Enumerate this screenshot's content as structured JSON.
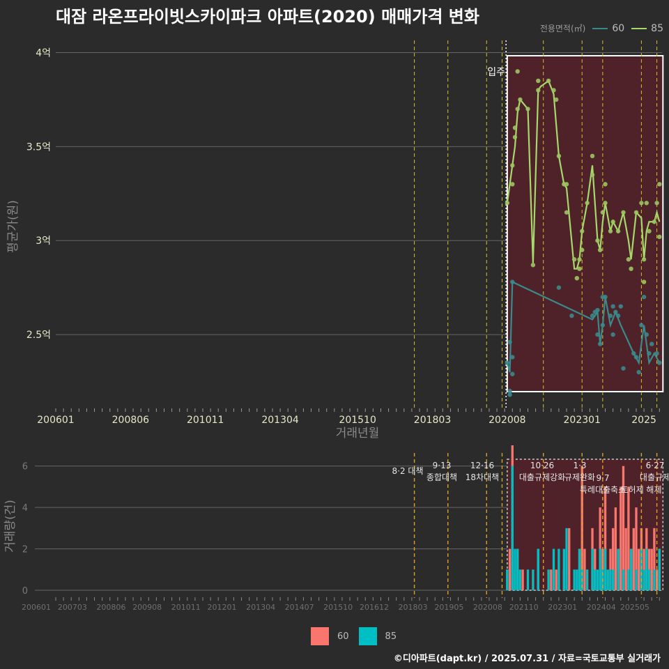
{
  "title": "대잠 라온프라이빗스카이파크 아파트(2020) 매매가격 변화",
  "footer": "©디아파트(dapt.kr) / 2025.07.31 / 자료=국토교통부 실거래가",
  "legend_top": {
    "title": "전용면적(㎡)",
    "items": [
      {
        "label": "60",
        "color": "#3a8a8c"
      },
      {
        "label": "85",
        "color": "#a7d86b"
      }
    ]
  },
  "legend_bottom": {
    "items": [
      {
        "label": "60",
        "color": "#f8766d"
      },
      {
        "label": "85",
        "color": "#00bfc4"
      }
    ]
  },
  "chart_data": [
    {
      "type": "line",
      "ylabel": "평균가(원)",
      "xlabel": "거래년월",
      "ylim": [
        2.1,
        4.05
      ],
      "y_unit": "억",
      "ytick_labels": [
        "2.5억",
        "3억",
        "3.5억",
        "4억"
      ],
      "ytick_values": [
        2.5,
        3.0,
        3.5,
        4.0
      ],
      "xtick_labels": [
        "200601",
        "200806",
        "201011",
        "201304",
        "201510",
        "201803",
        "202008",
        "202301",
        "2025"
      ],
      "xrange": [
        "2006-01",
        "2025-08"
      ],
      "grid": true,
      "highlight_period": [
        "2020-08",
        "2025-07"
      ],
      "policy_lines": [
        "2017-08",
        "2018-09",
        "2019-12",
        "2020-06",
        "2021-10",
        "2023-01",
        "2023-09",
        "2024-12",
        "2025-06"
      ],
      "annotation": {
        "text": "입주",
        "date": "2020-07"
      },
      "series": [
        {
          "name": "85",
          "color": "#a7d86b",
          "points": [
            [
              "2020-08",
              3.2
            ],
            [
              "2020-10",
              3.4
            ],
            [
              "2020-11",
              3.5
            ],
            [
              "2020-12",
              3.68
            ],
            [
              "2021-01",
              3.75
            ],
            [
              "2021-04",
              3.7
            ],
            [
              "2021-06",
              2.88
            ],
            [
              "2021-08",
              3.8
            ],
            [
              "2021-09",
              3.82
            ],
            [
              "2021-12",
              3.85
            ],
            [
              "2022-02",
              3.78
            ],
            [
              "2022-04",
              3.45
            ],
            [
              "2022-06",
              3.3
            ],
            [
              "2022-07",
              3.28
            ],
            [
              "2022-10",
              2.85
            ],
            [
              "2022-11",
              2.85
            ],
            [
              "2022-12",
              2.9
            ],
            [
              "2023-01",
              3.05
            ],
            [
              "2023-03",
              3.2
            ],
            [
              "2023-05",
              3.4
            ],
            [
              "2023-07",
              3.0
            ],
            [
              "2023-08",
              2.95
            ],
            [
              "2023-09",
              3.1
            ],
            [
              "2023-10",
              3.2
            ],
            [
              "2023-12",
              3.05
            ],
            [
              "2024-01",
              3.1
            ],
            [
              "2024-03",
              3.05
            ],
            [
              "2024-05",
              3.15
            ],
            [
              "2024-07",
              3.0
            ],
            [
              "2024-08",
              2.9
            ],
            [
              "2024-10",
              3.15
            ],
            [
              "2024-12",
              3.12
            ],
            [
              "2025-01",
              2.9
            ],
            [
              "2025-02",
              3.05
            ],
            [
              "2025-03",
              3.1
            ],
            [
              "2025-05",
              3.1
            ],
            [
              "2025-06",
              3.15
            ],
            [
              "2025-07",
              3.1
            ]
          ]
        },
        {
          "name": "60",
          "color": "#3a8a8c",
          "points": [
            [
              "2020-08",
              2.35
            ],
            [
              "2020-09",
              2.3
            ],
            [
              "2020-10",
              2.78
            ],
            [
              "2023-05",
              2.58
            ],
            [
              "2023-06",
              2.6
            ],
            [
              "2023-07",
              2.62
            ],
            [
              "2023-08",
              2.45
            ],
            [
              "2023-09",
              2.55
            ],
            [
              "2023-10",
              2.7
            ],
            [
              "2023-12",
              2.55
            ],
            [
              "2024-02",
              2.62
            ],
            [
              "2024-04",
              2.55
            ],
            [
              "2024-09",
              2.4
            ],
            [
              "2024-11",
              2.35
            ],
            [
              "2025-01",
              2.55
            ],
            [
              "2025-02",
              2.45
            ],
            [
              "2025-03",
              2.35
            ],
            [
              "2025-05",
              2.4
            ],
            [
              "2025-07",
              2.35
            ]
          ]
        }
      ],
      "scatter_85": [
        [
          "2020-08",
          3.2
        ],
        [
          "2020-10",
          3.3
        ],
        [
          "2020-10",
          3.4
        ],
        [
          "2020-11",
          3.55
        ],
        [
          "2020-11",
          3.6
        ],
        [
          "2020-12",
          3.7
        ],
        [
          "2020-12",
          3.9
        ],
        [
          "2021-01",
          3.75
        ],
        [
          "2021-04",
          3.7
        ],
        [
          "2021-06",
          2.87
        ],
        [
          "2021-08",
          3.8
        ],
        [
          "2021-08",
          3.85
        ],
        [
          "2021-12",
          3.85
        ],
        [
          "2022-02",
          3.8
        ],
        [
          "2022-03",
          3.75
        ],
        [
          "2022-04",
          3.45
        ],
        [
          "2022-06",
          3.3
        ],
        [
          "2022-07",
          3.3
        ],
        [
          "2022-07",
          3.15
        ],
        [
          "2022-10",
          2.9
        ],
        [
          "2022-11",
          2.8
        ],
        [
          "2022-12",
          2.9
        ],
        [
          "2022-12",
          2.85
        ],
        [
          "2023-01",
          3.05
        ],
        [
          "2023-01",
          2.95
        ],
        [
          "2023-03",
          3.2
        ],
        [
          "2023-05",
          3.45
        ],
        [
          "2023-05",
          3.35
        ],
        [
          "2023-07",
          3.0
        ],
        [
          "2023-08",
          2.95
        ],
        [
          "2023-09",
          3.15
        ],
        [
          "2023-10",
          3.3
        ],
        [
          "2023-10",
          3.2
        ],
        [
          "2023-12",
          3.05
        ],
        [
          "2024-01",
          3.1
        ],
        [
          "2024-03",
          3.05
        ],
        [
          "2024-05",
          3.15
        ],
        [
          "2024-07",
          2.9
        ],
        [
          "2024-08",
          2.85
        ],
        [
          "2024-10",
          3.15
        ],
        [
          "2024-12",
          3.2
        ],
        [
          "2025-01",
          2.9
        ],
        [
          "2025-01",
          2.78
        ],
        [
          "2025-02",
          3.2
        ],
        [
          "2025-03",
          3.05
        ],
        [
          "2025-05",
          3.1
        ],
        [
          "2025-06",
          3.2
        ],
        [
          "2025-07",
          3.3
        ],
        [
          "2025-07",
          3.02
        ]
      ],
      "scatter_60": [
        [
          "2020-08",
          2.35
        ],
        [
          "2020-09",
          2.2
        ],
        [
          "2020-09",
          2.18
        ],
        [
          "2020-09",
          2.46
        ],
        [
          "2020-10",
          2.38
        ],
        [
          "2020-10",
          2.29
        ],
        [
          "2020-10",
          2.78
        ],
        [
          "2022-04",
          2.75
        ],
        [
          "2022-09",
          2.6
        ],
        [
          "2023-05",
          2.6
        ],
        [
          "2023-06",
          2.62
        ],
        [
          "2023-07",
          2.63
        ],
        [
          "2023-07",
          2.5
        ],
        [
          "2023-08",
          2.45
        ],
        [
          "2023-09",
          2.7
        ],
        [
          "2023-09",
          2.55
        ],
        [
          "2023-10",
          2.7
        ],
        [
          "2023-12",
          2.6
        ],
        [
          "2024-01",
          2.65
        ],
        [
          "2024-01",
          2.5
        ],
        [
          "2024-02",
          2.62
        ],
        [
          "2024-03",
          2.6
        ],
        [
          "2024-04",
          2.65
        ],
        [
          "2024-05",
          2.32
        ],
        [
          "2024-09",
          2.4
        ],
        [
          "2024-10",
          2.38
        ],
        [
          "2024-11",
          2.3
        ],
        [
          "2024-12",
          2.55
        ],
        [
          "2025-01",
          2.7
        ],
        [
          "2025-02",
          2.5
        ],
        [
          "2025-03",
          2.4
        ],
        [
          "2025-04",
          2.45
        ],
        [
          "2025-06",
          2.4
        ],
        [
          "2025-07",
          2.35
        ]
      ]
    },
    {
      "type": "bar",
      "ylabel": "거래량(건)",
      "ylim": [
        0,
        7
      ],
      "ytick_labels": [
        "0",
        "2",
        "4",
        "6"
      ],
      "ytick_values": [
        0,
        2,
        4,
        6
      ],
      "xtick_labels": [
        "200601",
        "200703",
        "200806",
        "200908",
        "201011",
        "201201",
        "201304",
        "201407",
        "201510",
        "201612",
        "201803",
        "201905",
        "202008",
        "202110",
        "202301",
        "202404",
        "202505"
      ],
      "highlight_period": [
        "2020-08",
        "2025-07"
      ],
      "policy_lines": [
        "2017-08",
        "2018-09",
        "2019-12",
        "2020-06",
        "2021-10",
        "2023-01",
        "2023-09",
        "2024-12",
        "2025-06"
      ],
      "policy_labels": [
        {
          "date": "2017-08",
          "lines": [
            "8·2 대책"
          ]
        },
        {
          "date": "2018-09",
          "lines": [
            "9·13",
            "종합대책"
          ]
        },
        {
          "date": "2019-12",
          "lines": [
            "12·16",
            "18차대책"
          ]
        },
        {
          "date": "2021-10",
          "lines": [
            "10·26",
            "대출규제강화"
          ]
        },
        {
          "date": "2023-01",
          "lines": [
            "1·3",
            "규제완화"
          ]
        },
        {
          "date": "2023-09",
          "lines": [
            "9·7",
            "특례대출축소"
          ]
        },
        {
          "date": "2024-12",
          "lines": [
            "",
            "토허제 해제"
          ]
        },
        {
          "date": "2025-06",
          "lines": [
            "6·27",
            "대출규제"
          ]
        }
      ],
      "series": [
        {
          "name": "60",
          "color": "#f8766d",
          "values": [
            [
              "2020-08",
              1
            ],
            [
              "2020-09",
              2
            ],
            [
              "2020-10",
              7
            ],
            [
              "2020-11",
              1
            ],
            [
              "2020-12",
              2
            ],
            [
              "2021-02",
              1
            ],
            [
              "2021-08",
              2
            ],
            [
              "2022-01",
              1
            ],
            [
              "2022-03",
              1
            ],
            [
              "2022-06",
              1
            ],
            [
              "2022-08",
              3
            ],
            [
              "2022-12",
              2
            ],
            [
              "2023-01",
              6
            ],
            [
              "2023-02",
              2
            ],
            [
              "2023-05",
              3
            ],
            [
              "2023-06",
              2
            ],
            [
              "2023-08",
              4
            ],
            [
              "2023-09",
              2
            ],
            [
              "2023-10",
              5
            ],
            [
              "2023-12",
              2
            ],
            [
              "2024-01",
              3
            ],
            [
              "2024-02",
              4
            ],
            [
              "2024-03",
              2
            ],
            [
              "2024-04",
              5
            ],
            [
              "2024-05",
              6
            ],
            [
              "2024-06",
              3
            ],
            [
              "2024-07",
              5
            ],
            [
              "2024-08",
              2
            ],
            [
              "2024-09",
              3
            ],
            [
              "2024-10",
              4
            ],
            [
              "2024-11",
              2
            ],
            [
              "2024-12",
              3
            ],
            [
              "2025-01",
              2
            ],
            [
              "2025-02",
              3
            ],
            [
              "2025-03",
              2
            ],
            [
              "2025-04",
              2
            ],
            [
              "2025-05",
              3
            ],
            [
              "2025-06",
              1
            ],
            [
              "2025-07",
              2
            ]
          ]
        },
        {
          "name": "85",
          "color": "#00bfc4",
          "values": [
            [
              "2020-08",
              1
            ],
            [
              "2020-10",
              6
            ],
            [
              "2020-11",
              2
            ],
            [
              "2020-12",
              2
            ],
            [
              "2021-01",
              1
            ],
            [
              "2021-04",
              1
            ],
            [
              "2021-06",
              1
            ],
            [
              "2021-08",
              2
            ],
            [
              "2021-12",
              1
            ],
            [
              "2022-02",
              2
            ],
            [
              "2022-04",
              2
            ],
            [
              "2022-06",
              2
            ],
            [
              "2022-07",
              3
            ],
            [
              "2022-10",
              1
            ],
            [
              "2022-11",
              1
            ],
            [
              "2022-12",
              2
            ],
            [
              "2023-01",
              1
            ],
            [
              "2023-03",
              1
            ],
            [
              "2023-05",
              2
            ],
            [
              "2023-06",
              1
            ],
            [
              "2023-07",
              1
            ],
            [
              "2023-08",
              2
            ],
            [
              "2023-09",
              1
            ],
            [
              "2023-10",
              2
            ],
            [
              "2023-11",
              1
            ],
            [
              "2023-12",
              1
            ],
            [
              "2024-01",
              1
            ],
            [
              "2024-03",
              2
            ],
            [
              "2024-05",
              1
            ],
            [
              "2024-07",
              1
            ],
            [
              "2024-08",
              2
            ],
            [
              "2024-10",
              1
            ],
            [
              "2024-12",
              2
            ],
            [
              "2025-01",
              1
            ],
            [
              "2025-02",
              2
            ],
            [
              "2025-03",
              1
            ],
            [
              "2025-05",
              1
            ],
            [
              "2025-07",
              2
            ]
          ]
        }
      ]
    }
  ]
}
